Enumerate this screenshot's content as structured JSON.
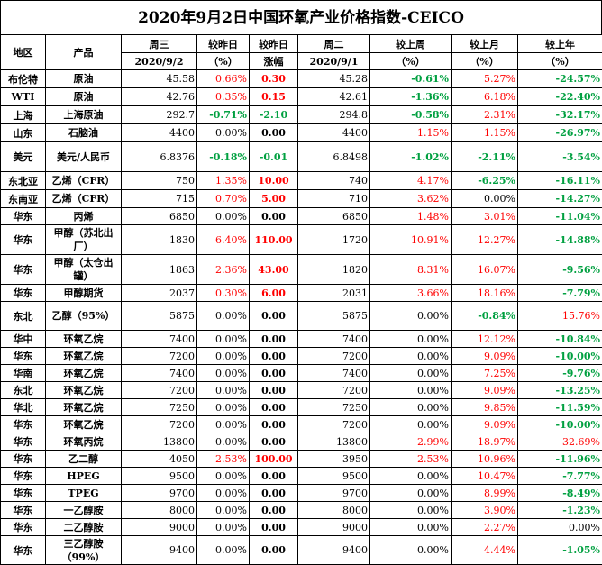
{
  "title": "2020年9月2日中国环氧产业价格指数-CEICO",
  "header": {
    "region": "地区",
    "product": "产品",
    "wed": "周三",
    "wed_date": "2020/9/2",
    "vs_yesterday": "较昨日",
    "vs_yesterday_unit": "（%）",
    "vs_yesterday2": "较昨日",
    "change": "涨幅",
    "tue": "周二",
    "tue_date": "2020/9/1",
    "vs_last_week": "较上周",
    "vs_last_week_unit": "（%）",
    "vs_last_month": "较上月",
    "vs_last_month_unit": "（%）",
    "vs_last_year": "较上年",
    "vs_last_year_unit": "（%）"
  },
  "colors": {
    "up": "#ff0000",
    "down": "#00a040",
    "flat": "#000000"
  },
  "rows": [
    {
      "region": "布伦特",
      "product": "原油",
      "wed": "45.58",
      "pct_day": "0.66%",
      "chg": "0.30",
      "tue": "45.28",
      "wk": "-0.61%",
      "mo": "5.27%",
      "yr": "-24.57%",
      "d": "up",
      "w": "down",
      "m": "up",
      "y": "down",
      "h": 20
    },
    {
      "region": "WTI",
      "product": "原油",
      "wed": "42.76",
      "pct_day": "0.35%",
      "chg": "0.15",
      "tue": "42.61",
      "wk": "-1.36%",
      "mo": "6.18%",
      "yr": "-22.40%",
      "d": "up",
      "w": "down",
      "m": "up",
      "y": "down",
      "h": 20
    },
    {
      "region": "上海",
      "product": "上海原油",
      "wed": "292.7",
      "pct_day": "-0.71%",
      "chg": "-2.10",
      "tue": "294.8",
      "wk": "-0.58%",
      "mo": "2.31%",
      "yr": "-32.17%",
      "d": "down",
      "w": "down",
      "m": "up",
      "y": "down",
      "h": 20
    },
    {
      "region": "山东",
      "product": "石脑油",
      "wed": "4400",
      "pct_day": "0.00%",
      "chg": "0.00",
      "tue": "4400",
      "wk": "1.15%",
      "mo": "1.15%",
      "yr": "-26.97%",
      "d": "flat",
      "w": "up",
      "m": "up",
      "y": "down",
      "h": 20
    },
    {
      "region": "美元",
      "product": "美元/人民币",
      "wed": "6.8376",
      "pct_day": "-0.18%",
      "chg": "-0.01",
      "tue": "6.8498",
      "wk": "-1.02%",
      "mo": "-2.11%",
      "yr": "-3.54%",
      "d": "down",
      "w": "down",
      "m": "down",
      "y": "down",
      "h": 33
    },
    {
      "region": "东北亚",
      "product": "乙烯（CFR）",
      "wed": "750",
      "pct_day": "1.35%",
      "chg": "10.00",
      "tue": "740",
      "wk": "4.17%",
      "mo": "-6.25%",
      "yr": "-16.11%",
      "d": "up",
      "w": "up",
      "m": "down",
      "y": "down",
      "h": 20
    },
    {
      "region": "东南亚",
      "product": "乙烯（CFR）",
      "wed": "715",
      "pct_day": "0.70%",
      "chg": "5.00",
      "tue": "710",
      "wk": "3.62%",
      "mo": "0.00%",
      "yr": "-14.27%",
      "d": "up",
      "w": "up",
      "m": "flat",
      "y": "down",
      "h": 20
    },
    {
      "region": "华东",
      "product": "丙烯",
      "wed": "6850",
      "pct_day": "0.00%",
      "chg": "0.00",
      "tue": "6850",
      "wk": "1.48%",
      "mo": "3.01%",
      "yr": "-11.04%",
      "d": "flat",
      "w": "up",
      "m": "up",
      "y": "down",
      "h": 18
    },
    {
      "region": "华东",
      "product": "甲醇（苏北出厂）",
      "wed": "1830",
      "pct_day": "6.40%",
      "chg": "110.00",
      "tue": "1720",
      "wk": "10.91%",
      "mo": "12.27%",
      "yr": "-14.88%",
      "d": "up",
      "w": "up",
      "m": "up",
      "y": "down",
      "h": 33
    },
    {
      "region": "华东",
      "product": "甲醇（太仓出罐）",
      "wed": "1863",
      "pct_day": "2.36%",
      "chg": "43.00",
      "tue": "1820",
      "wk": "8.31%",
      "mo": "16.07%",
      "yr": "-9.56%",
      "d": "up",
      "w": "up",
      "m": "up",
      "y": "down",
      "h": 33
    },
    {
      "region": "华东",
      "product": "甲醇期货",
      "wed": "2037",
      "pct_day": "0.30%",
      "chg": "6.00",
      "tue": "2031",
      "wk": "3.66%",
      "mo": "18.16%",
      "yr": "-7.79%",
      "d": "up",
      "w": "up",
      "m": "up",
      "y": "down",
      "h": 18
    },
    {
      "region": "东北",
      "product": "乙醇（95%）",
      "wed": "5875",
      "pct_day": "0.00%",
      "chg": "0.00",
      "tue": "5875",
      "wk": "0.00%",
      "mo": "-0.84%",
      "yr": "15.76%",
      "d": "flat",
      "w": "flat",
      "m": "down",
      "y": "up",
      "h": 32
    },
    {
      "region": "华中",
      "product": "环氧乙烷",
      "wed": "7400",
      "pct_day": "0.00%",
      "chg": "0.00",
      "tue": "7400",
      "wk": "0.00%",
      "mo": "12.12%",
      "yr": "-10.84%",
      "d": "flat",
      "w": "flat",
      "m": "up",
      "y": "down",
      "h": 18
    },
    {
      "region": "华东",
      "product": "环氧乙烷",
      "wed": "7200",
      "pct_day": "0.00%",
      "chg": "0.00",
      "tue": "7200",
      "wk": "0.00%",
      "mo": "9.09%",
      "yr": "-10.00%",
      "d": "flat",
      "w": "flat",
      "m": "up",
      "y": "down",
      "h": 18
    },
    {
      "region": "华南",
      "product": "环氧乙烷",
      "wed": "7400",
      "pct_day": "0.00%",
      "chg": "0.00",
      "tue": "7400",
      "wk": "0.00%",
      "mo": "7.25%",
      "yr": "-9.76%",
      "d": "flat",
      "w": "flat",
      "m": "up",
      "y": "down",
      "h": 18
    },
    {
      "region": "东北",
      "product": "环氧乙烷",
      "wed": "7200",
      "pct_day": "0.00%",
      "chg": "0.00",
      "tue": "7200",
      "wk": "0.00%",
      "mo": "9.09%",
      "yr": "-13.25%",
      "d": "flat",
      "w": "flat",
      "m": "up",
      "y": "down",
      "h": 18
    },
    {
      "region": "华北",
      "product": "环氧乙烷",
      "wed": "7250",
      "pct_day": "0.00%",
      "chg": "0.00",
      "tue": "7250",
      "wk": "0.00%",
      "mo": "9.85%",
      "yr": "-11.59%",
      "d": "flat",
      "w": "flat",
      "m": "up",
      "y": "down",
      "h": 18
    },
    {
      "region": "华东",
      "product": "环氧乙烷",
      "wed": "7200",
      "pct_day": "0.00%",
      "chg": "0.00",
      "tue": "7200",
      "wk": "0.00%",
      "mo": "9.09%",
      "yr": "-10.00%",
      "d": "flat",
      "w": "flat",
      "m": "up",
      "y": "down",
      "h": 18
    },
    {
      "region": "华东",
      "product": "环氧丙烷",
      "wed": "13800",
      "pct_day": "0.00%",
      "chg": "0.00",
      "tue": "13800",
      "wk": "2.99%",
      "mo": "18.97%",
      "yr": "32.69%",
      "d": "flat",
      "w": "up",
      "m": "up",
      "y": "up",
      "h": 18
    },
    {
      "region": "华东",
      "product": "乙二醇",
      "wed": "4050",
      "pct_day": "2.53%",
      "chg": "100.00",
      "tue": "3950",
      "wk": "2.53%",
      "mo": "10.96%",
      "yr": "-11.96%",
      "d": "up",
      "w": "up",
      "m": "up",
      "y": "down",
      "h": 18
    },
    {
      "region": "华东",
      "product": "HPEG",
      "wed": "9500",
      "pct_day": "0.00%",
      "chg": "0.00",
      "tue": "9500",
      "wk": "0.00%",
      "mo": "10.47%",
      "yr": "-7.77%",
      "d": "flat",
      "w": "flat",
      "m": "up",
      "y": "down",
      "h": 18
    },
    {
      "region": "华东",
      "product": "TPEG",
      "wed": "9700",
      "pct_day": "0.00%",
      "chg": "0.00",
      "tue": "9700",
      "wk": "0.00%",
      "mo": "8.99%",
      "yr": "-8.49%",
      "d": "flat",
      "w": "flat",
      "m": "up",
      "y": "down",
      "h": 18
    },
    {
      "region": "华东",
      "product": "一乙醇胺",
      "wed": "8000",
      "pct_day": "0.00%",
      "chg": "0.00",
      "tue": "8000",
      "wk": "0.00%",
      "mo": "3.90%",
      "yr": "-1.23%",
      "d": "flat",
      "w": "flat",
      "m": "up",
      "y": "down",
      "h": 18
    },
    {
      "region": "华东",
      "product": "二乙醇胺",
      "wed": "9000",
      "pct_day": "0.00%",
      "chg": "0.00",
      "tue": "9000",
      "wk": "0.00%",
      "mo": "2.27%",
      "yr": "0.00%",
      "d": "flat",
      "w": "flat",
      "m": "up",
      "y": "flat",
      "h": 18
    },
    {
      "region": "华东",
      "product": "三乙醇胺（99%）",
      "wed": "9400",
      "pct_day": "0.00%",
      "chg": "0.00",
      "tue": "9400",
      "wk": "0.00%",
      "mo": "4.44%",
      "yr": "-1.05%",
      "d": "flat",
      "w": "flat",
      "m": "up",
      "y": "down",
      "h": 32
    }
  ]
}
